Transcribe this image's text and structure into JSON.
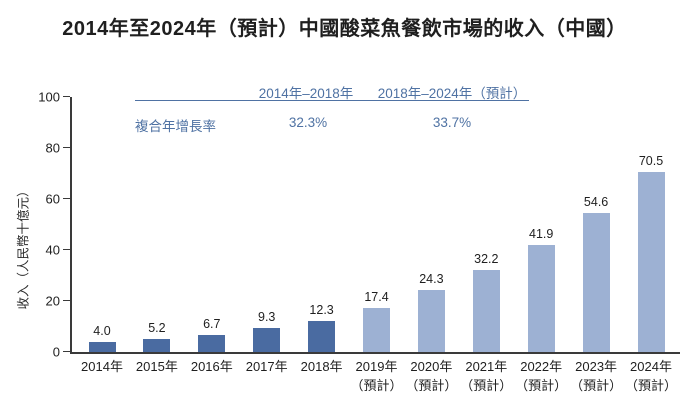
{
  "chart_data": {
    "type": "bar",
    "title": "2014年至2024年（預計）中國酸菜魚餐飲市場的收入（中國）",
    "ylabel": "收入（人民幣十億元）",
    "xlabel": "",
    "ylim": [
      0,
      100
    ],
    "yticks": [
      0,
      20,
      40,
      60,
      80,
      100
    ],
    "grid": false,
    "legend": "none",
    "categories": [
      {
        "label": "2014年",
        "sublabel": "",
        "type": "actual"
      },
      {
        "label": "2015年",
        "sublabel": "",
        "type": "actual"
      },
      {
        "label": "2016年",
        "sublabel": "",
        "type": "actual"
      },
      {
        "label": "2017年",
        "sublabel": "",
        "type": "actual"
      },
      {
        "label": "2018年",
        "sublabel": "",
        "type": "actual"
      },
      {
        "label": "2019年",
        "sublabel": "（預計）",
        "type": "forecast"
      },
      {
        "label": "2020年",
        "sublabel": "（預計）",
        "type": "forecast"
      },
      {
        "label": "2021年",
        "sublabel": "（預計）",
        "type": "forecast"
      },
      {
        "label": "2022年",
        "sublabel": "（預計）",
        "type": "forecast"
      },
      {
        "label": "2023年",
        "sublabel": "（預計）",
        "type": "forecast"
      },
      {
        "label": "2024年",
        "sublabel": "（預計）",
        "type": "forecast"
      }
    ],
    "values": [
      4.0,
      5.2,
      6.7,
      9.3,
      12.3,
      17.4,
      24.3,
      32.2,
      41.9,
      54.6,
      70.5
    ],
    "value_labels": [
      "4.0",
      "5.2",
      "6.7",
      "9.3",
      "12.3",
      "17.4",
      "24.3",
      "32.2",
      "41.9",
      "54.6",
      "70.5"
    ],
    "colors": {
      "actual": "#4a6ba1",
      "forecast": "#9db1d3",
      "annotation_text": "#4f72a3",
      "axis": "#3a3a3a",
      "text": "#1f1f1f"
    },
    "cagr": {
      "row_label": "複合年增長率",
      "columns": [
        {
          "period": "2014年–2018年",
          "value": "32.3%"
        },
        {
          "period": "2018年–2024年（預計）",
          "value": "33.7%"
        }
      ]
    }
  }
}
